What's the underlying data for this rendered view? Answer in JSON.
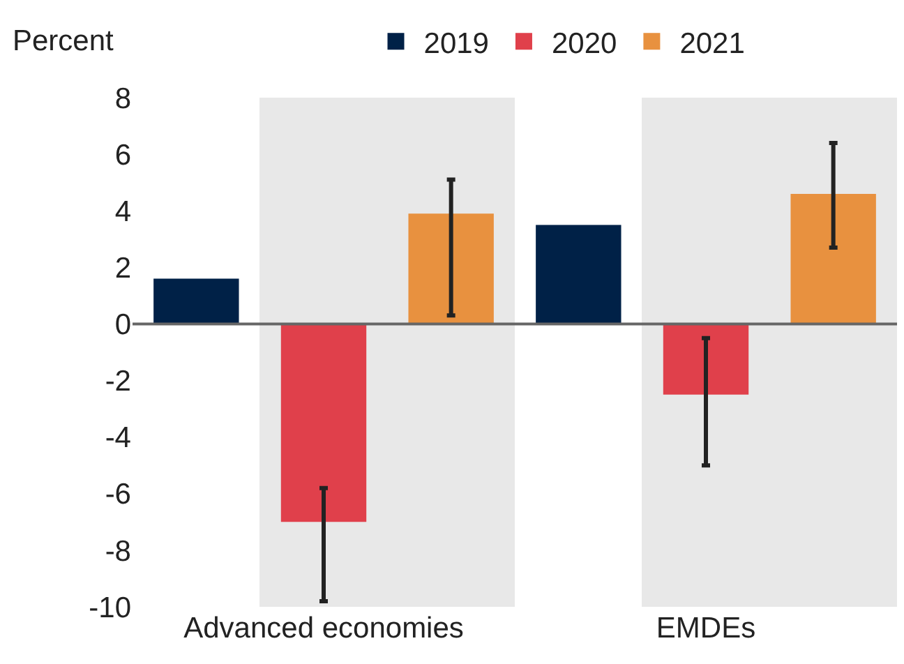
{
  "chart_data": {
    "type": "bar",
    "ylabel": "Percent",
    "categories": [
      "Advanced economies",
      "EMDEs"
    ],
    "series": [
      {
        "name": "2019",
        "color": "#002147",
        "values": [
          1.6,
          3.5
        ]
      },
      {
        "name": "2020",
        "color": "#e0404b",
        "values": [
          -7.0,
          -2.5
        ],
        "errors": [
          [
            -9.8,
            -5.8
          ],
          [
            -5.0,
            -0.5
          ]
        ]
      },
      {
        "name": "2021",
        "color": "#e8913f",
        "values": [
          3.9,
          4.6
        ],
        "errors": [
          [
            0.3,
            5.1
          ],
          [
            2.7,
            6.4
          ]
        ]
      }
    ],
    "ylim": [
      -10,
      8
    ],
    "yticks": [
      -10,
      -8,
      -6,
      -4,
      -2,
      0,
      2,
      4,
      6,
      8
    ],
    "ref_lines": [
      {
        "axis": "y",
        "value": 0,
        "color": "#666666"
      }
    ],
    "grid": false,
    "legend": "top"
  }
}
